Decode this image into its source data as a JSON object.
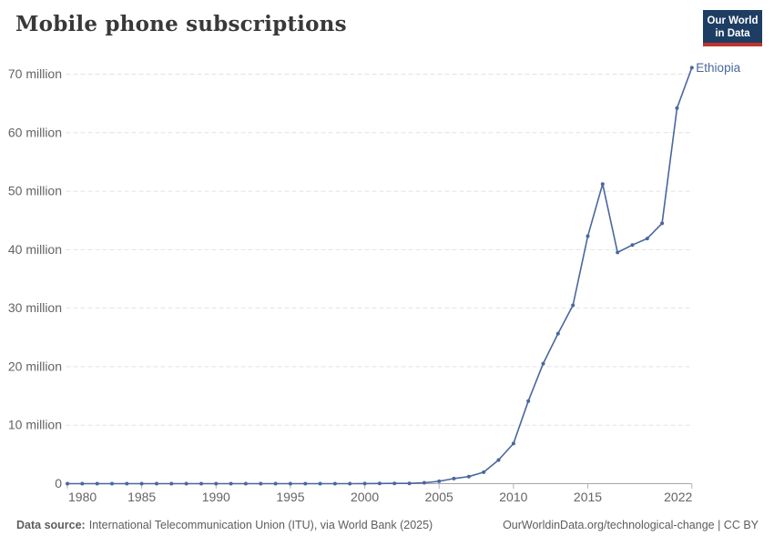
{
  "header": {
    "title": "Mobile phone subscriptions",
    "logo": {
      "line1": "Our World",
      "line2": "in Data"
    }
  },
  "colors": {
    "line": "#4a679d",
    "grid": "#e2e2e2",
    "axis": "#a6a6a6",
    "tick": "#b4b4b4",
    "tick_label": "#646464",
    "logo_navy": "#1d3d63",
    "logo_red": "#c0342c",
    "title_text": "#393939",
    "footer_text": "#5d5d5d"
  },
  "chart_data": {
    "type": "line",
    "title": "Mobile phone subscriptions",
    "xlabel": "",
    "ylabel": "",
    "xlim": [
      1980,
      2022
    ],
    "ylim": [
      0,
      70
    ],
    "grid": "horizontal-dashed",
    "legend_position": "end-of-line-label",
    "x": [
      1980,
      1981,
      1982,
      1983,
      1984,
      1985,
      1986,
      1987,
      1988,
      1989,
      1990,
      1991,
      1992,
      1993,
      1994,
      1995,
      1996,
      1997,
      1998,
      1999,
      2000,
      2001,
      2002,
      2003,
      2004,
      2005,
      2006,
      2007,
      2008,
      2009,
      2010,
      2011,
      2012,
      2013,
      2014,
      2015,
      2016,
      2017,
      2018,
      2019,
      2020,
      2021,
      2022
    ],
    "series": [
      {
        "name": "Ethiopia",
        "color": "#4a679d",
        "unit": "million subscriptions",
        "values": [
          0,
          0,
          0,
          0,
          0,
          0,
          0,
          0,
          0,
          0,
          0,
          0,
          0,
          0,
          0,
          0,
          0,
          0,
          0,
          0.004,
          0.018,
          0.028,
          0.05,
          0.051,
          0.156,
          0.411,
          0.867,
          1.208,
          1.954,
          4.052,
          6.854,
          14.127,
          20.524,
          25.647,
          30.489,
          42.312,
          51.224,
          39.523,
          40.8,
          41.9,
          44.5,
          64.2,
          71.1
        ]
      }
    ],
    "x_ticks": [
      {
        "v": 1980,
        "label": "1980"
      },
      {
        "v": 1985,
        "label": "1985"
      },
      {
        "v": 1990,
        "label": "1990"
      },
      {
        "v": 1995,
        "label": "1995"
      },
      {
        "v": 2000,
        "label": "2000"
      },
      {
        "v": 2005,
        "label": "2005"
      },
      {
        "v": 2010,
        "label": "2010"
      },
      {
        "v": 2015,
        "label": "2015"
      },
      {
        "v": 2022,
        "label": "2022"
      }
    ],
    "y_ticks": [
      {
        "v": 0,
        "label": "0"
      },
      {
        "v": 10,
        "label": "10 million"
      },
      {
        "v": 20,
        "label": "20 million"
      },
      {
        "v": 30,
        "label": "30 million"
      },
      {
        "v": 40,
        "label": "40 million"
      },
      {
        "v": 50,
        "label": "50 million"
      },
      {
        "v": 60,
        "label": "60 million"
      },
      {
        "v": 70,
        "label": "70 million"
      }
    ]
  },
  "footer": {
    "source_label": "Data source:",
    "source_text": "International Telecommunication Union (ITU), via World Bank (2025)",
    "link_text": "OurWorldinData.org/technological-change | CC BY"
  }
}
